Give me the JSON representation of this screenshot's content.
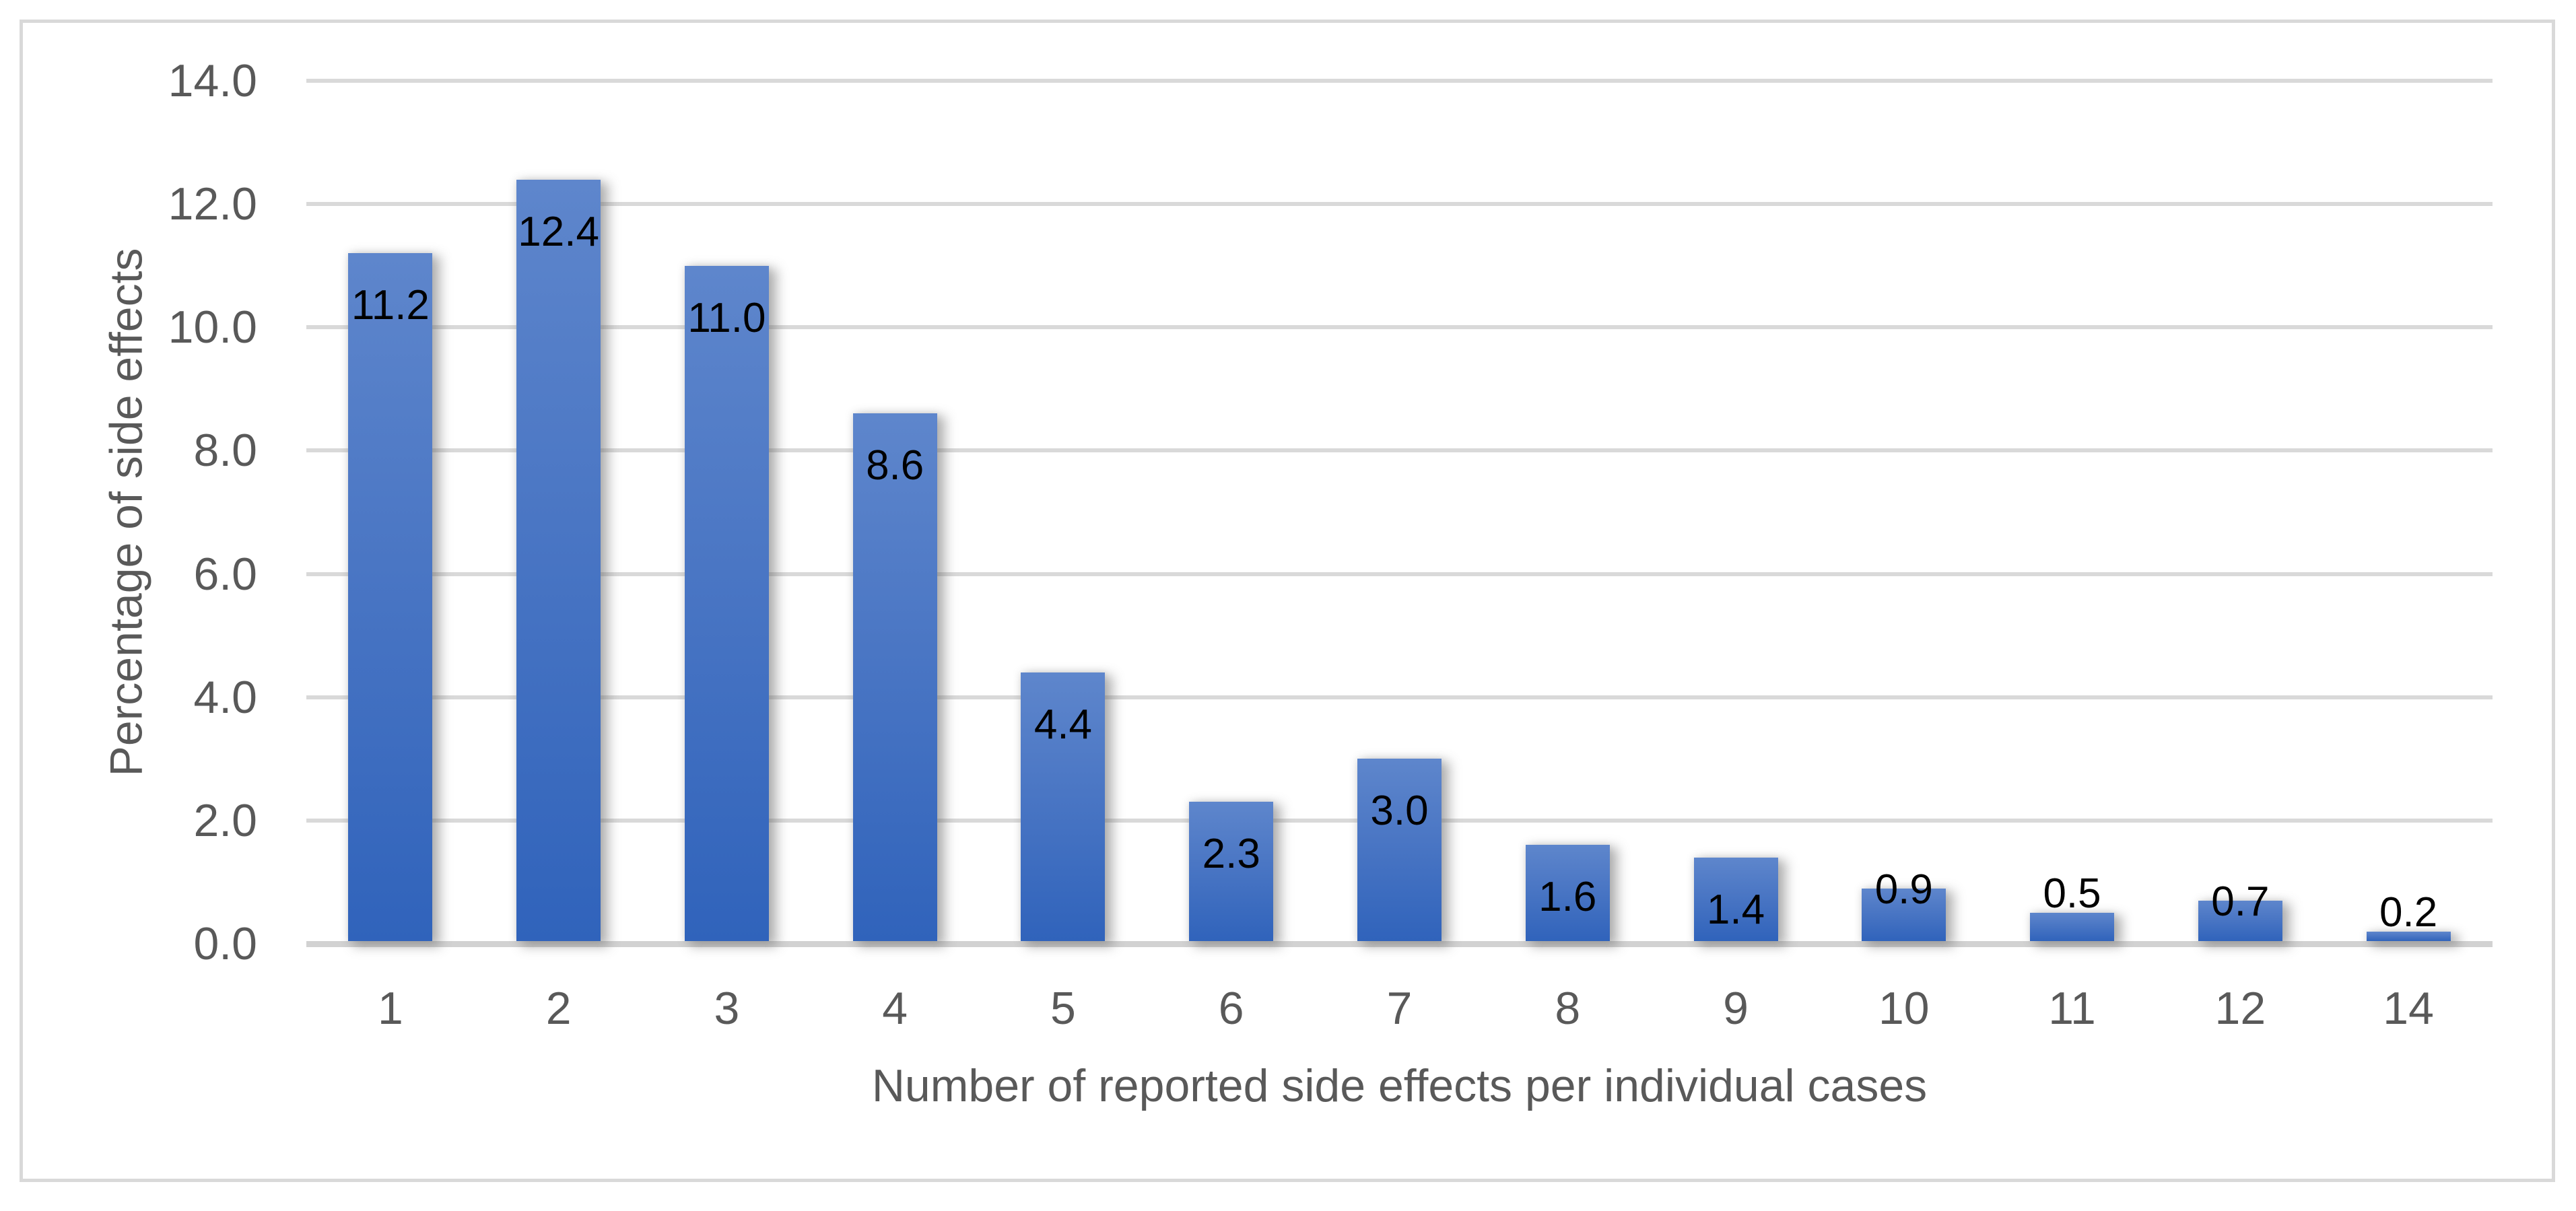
{
  "figure": {
    "background_color": "#FFFFFF",
    "border_color": "#D9D9D9"
  },
  "chart_data": {
    "type": "bar",
    "categories": [
      "1",
      "2",
      "3",
      "4",
      "5",
      "6",
      "7",
      "8",
      "9",
      "10",
      "11",
      "12",
      "14"
    ],
    "values": [
      11.2,
      12.4,
      11.0,
      8.6,
      4.4,
      2.3,
      3.0,
      1.6,
      1.4,
      0.9,
      0.5,
      0.7,
      0.2
    ],
    "data_labels": [
      "11.2",
      "12.4",
      "11.0",
      "8.6",
      "4.4",
      "2.3",
      "3.0",
      "1.6",
      "1.4",
      "0.9",
      "0.5",
      "0.7",
      "0.2"
    ],
    "xlabel": "Number of reported side effects per individual cases",
    "ylabel": "Percentage of side effects",
    "ylim": [
      0,
      14
    ],
    "ytick_step": 2,
    "ytick_labels": [
      "0.0",
      "2.0",
      "4.0",
      "6.0",
      "8.0",
      "10.0",
      "12.0",
      "14.0"
    ],
    "grid": true,
    "legend": false,
    "colors": {
      "bar_gradient_top": "#5E86CC",
      "bar_gradient_bottom": "#3063BB",
      "gridline": "#D9D9D9",
      "axis_line": "#D2D2D2",
      "axis_text": "#595959",
      "data_label_text": "#000000"
    }
  }
}
